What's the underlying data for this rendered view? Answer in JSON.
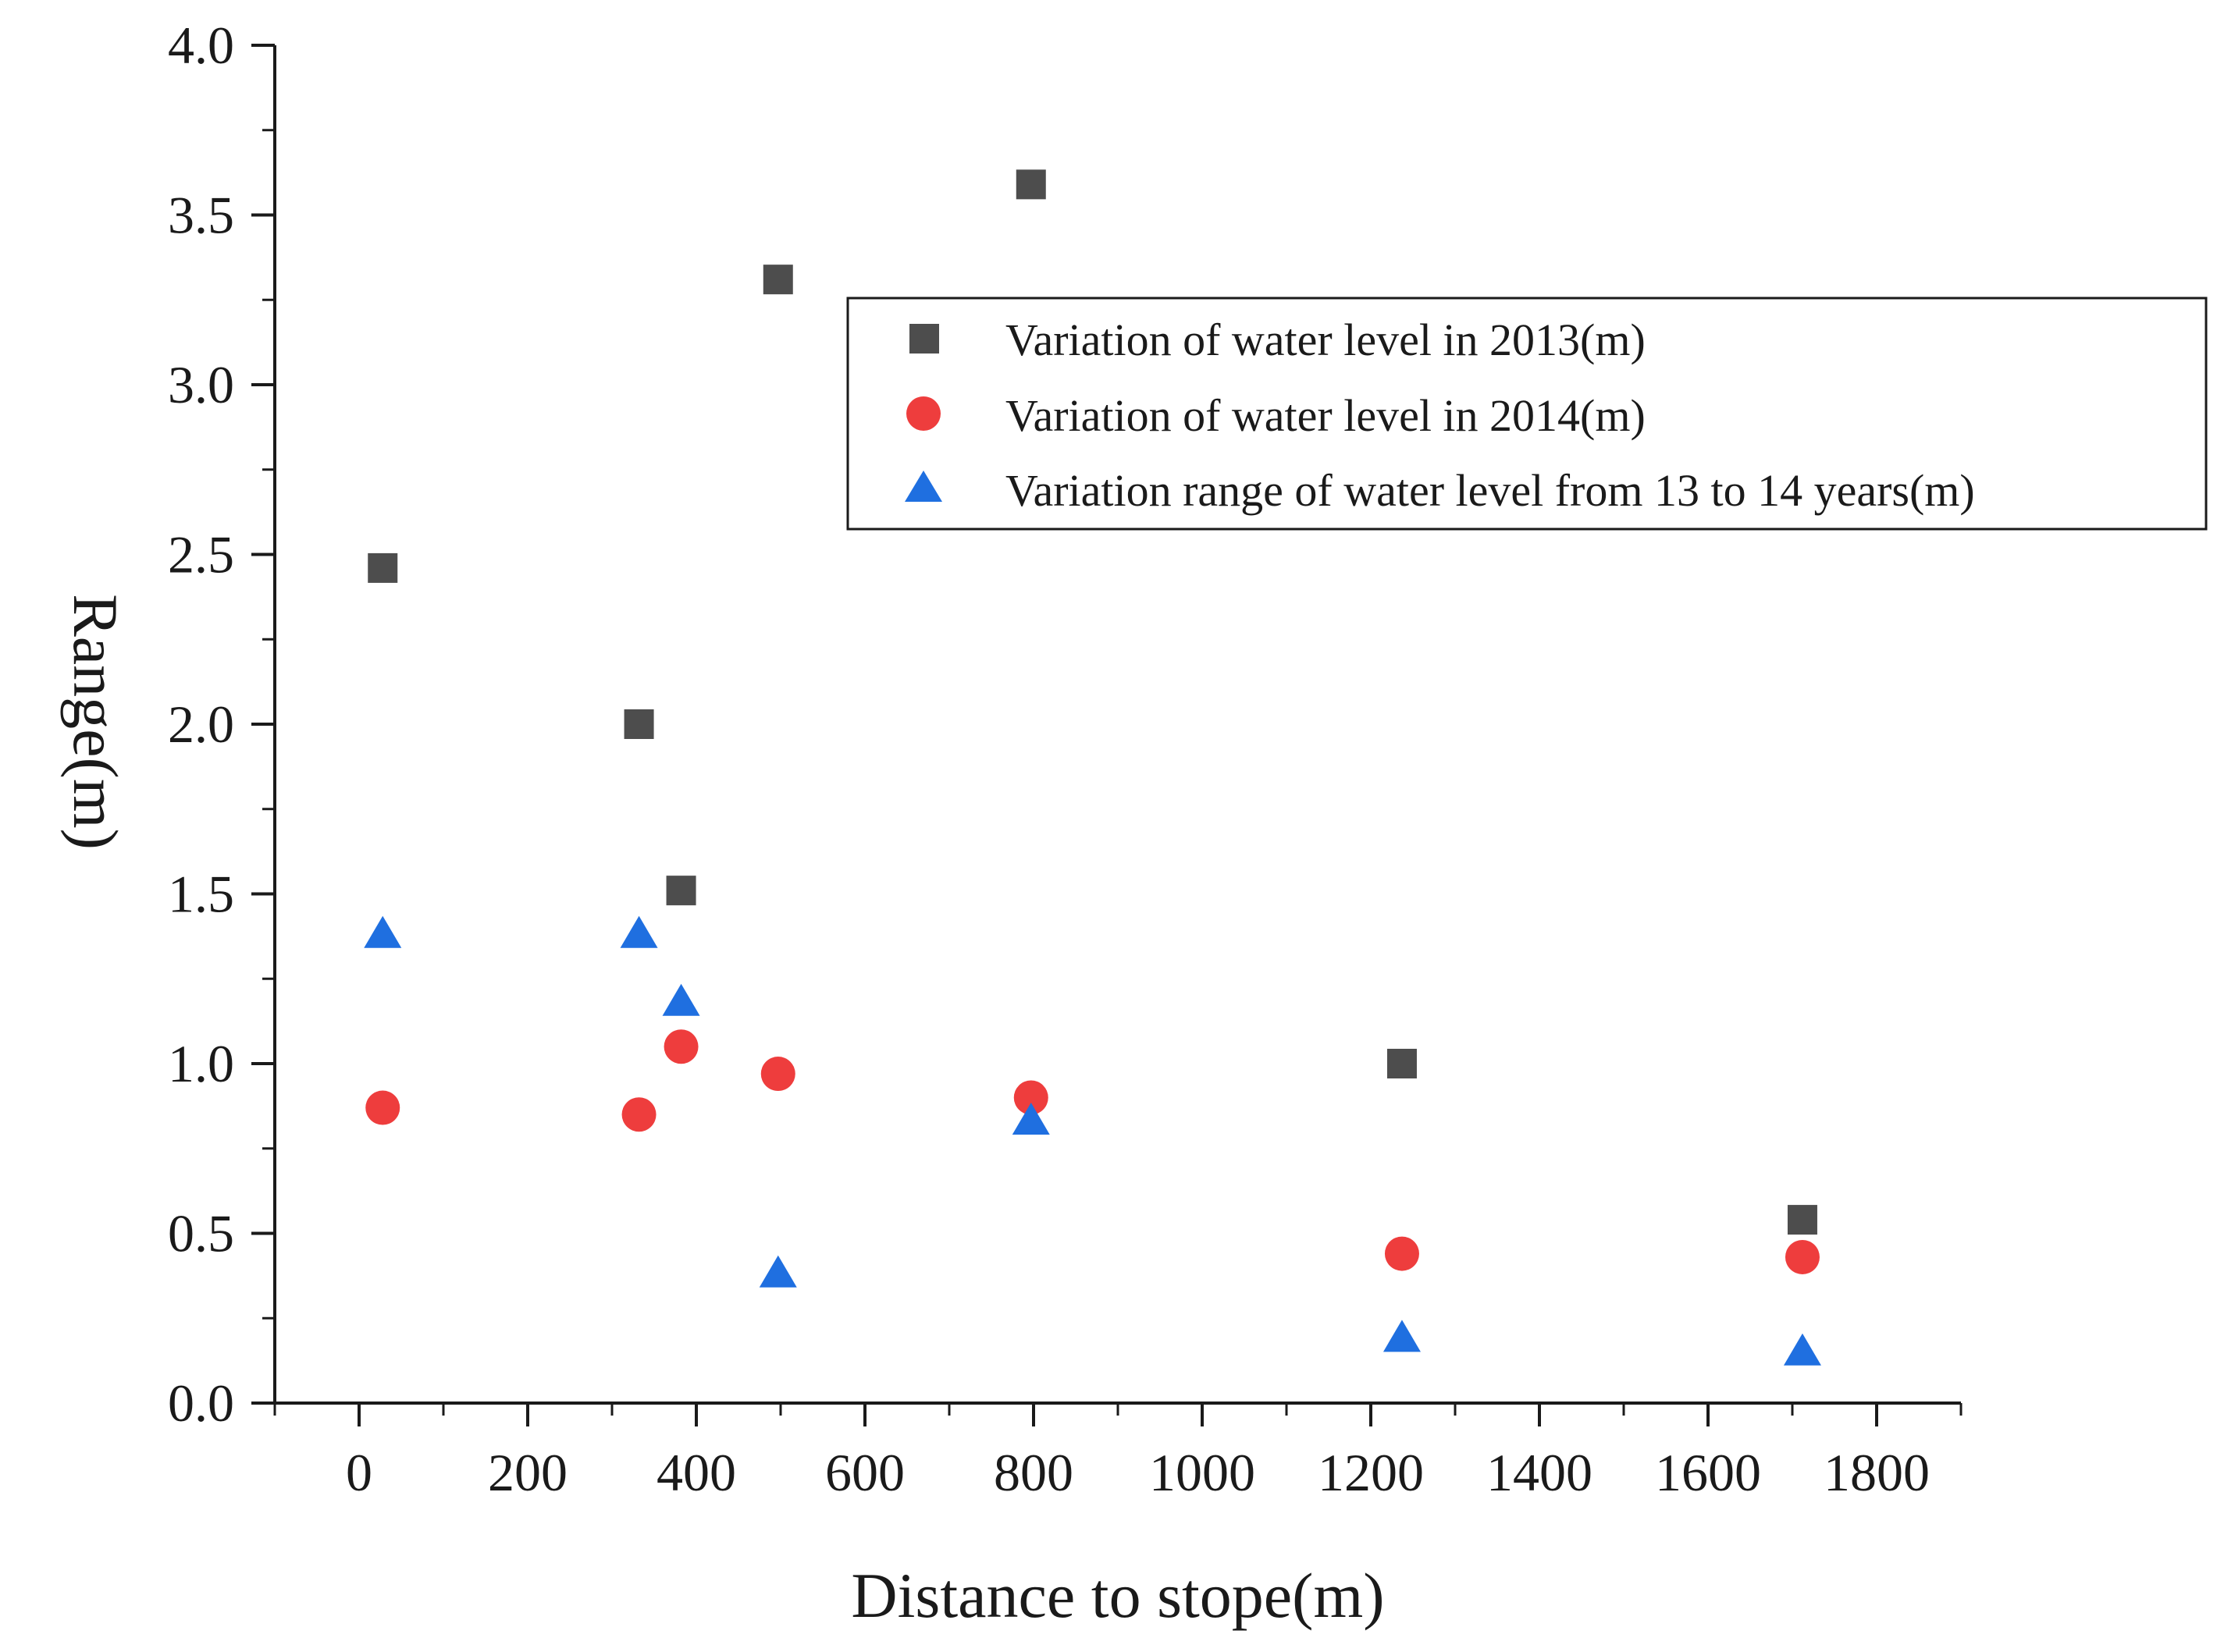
{
  "chart_data": {
    "type": "scatter",
    "xlabel": "Distance to stope(m)",
    "ylabel": "Range(m)",
    "xlim": [
      -100,
      1900
    ],
    "ylim": [
      0,
      4.0
    ],
    "x_ticks": [
      0,
      200,
      400,
      600,
      800,
      1000,
      1200,
      1400,
      1600,
      1800
    ],
    "x_tick_labels": [
      "0",
      "200",
      "400",
      "600",
      "800",
      "1000",
      "1200",
      "1400",
      "1600",
      "1800"
    ],
    "y_ticks": [
      0,
      0.5,
      1.0,
      1.5,
      2.0,
      2.5,
      3.0,
      3.5,
      4.0
    ],
    "y_tick_labels": [
      "0.0",
      "0.5",
      "1.0",
      "1.5",
      "2.0",
      "2.5",
      "3.0",
      "3.5",
      "4.0"
    ],
    "legend_position": "top-right",
    "series": [
      {
        "name": "Variation of water level in 2013(m)",
        "marker": "square",
        "color": "#4d4d4d",
        "points": [
          {
            "x": 28,
            "y": 2.46
          },
          {
            "x": 332,
            "y": 2.0
          },
          {
            "x": 382,
            "y": 1.51
          },
          {
            "x": 497,
            "y": 3.31
          },
          {
            "x": 797,
            "y": 3.59
          },
          {
            "x": 1237,
            "y": 1.0
          },
          {
            "x": 1712,
            "y": 0.54
          }
        ]
      },
      {
        "name": "Variation of water level in 2014(m)",
        "marker": "circle",
        "color": "#ee3d3d",
        "points": [
          {
            "x": 28,
            "y": 0.87
          },
          {
            "x": 332,
            "y": 0.85
          },
          {
            "x": 382,
            "y": 1.05
          },
          {
            "x": 497,
            "y": 0.97
          },
          {
            "x": 797,
            "y": 0.9
          },
          {
            "x": 1237,
            "y": 0.44
          },
          {
            "x": 1712,
            "y": 0.43
          }
        ]
      },
      {
        "name": "Variation range of water level from 13 to 14 years(m)",
        "marker": "triangle",
        "color": "#1f6fe0",
        "points": [
          {
            "x": 28,
            "y": 1.38
          },
          {
            "x": 332,
            "y": 1.38
          },
          {
            "x": 382,
            "y": 1.18
          },
          {
            "x": 497,
            "y": 0.38
          },
          {
            "x": 797,
            "y": 0.83
          },
          {
            "x": 1237,
            "y": 0.19
          },
          {
            "x": 1712,
            "y": 0.15
          }
        ]
      }
    ]
  }
}
